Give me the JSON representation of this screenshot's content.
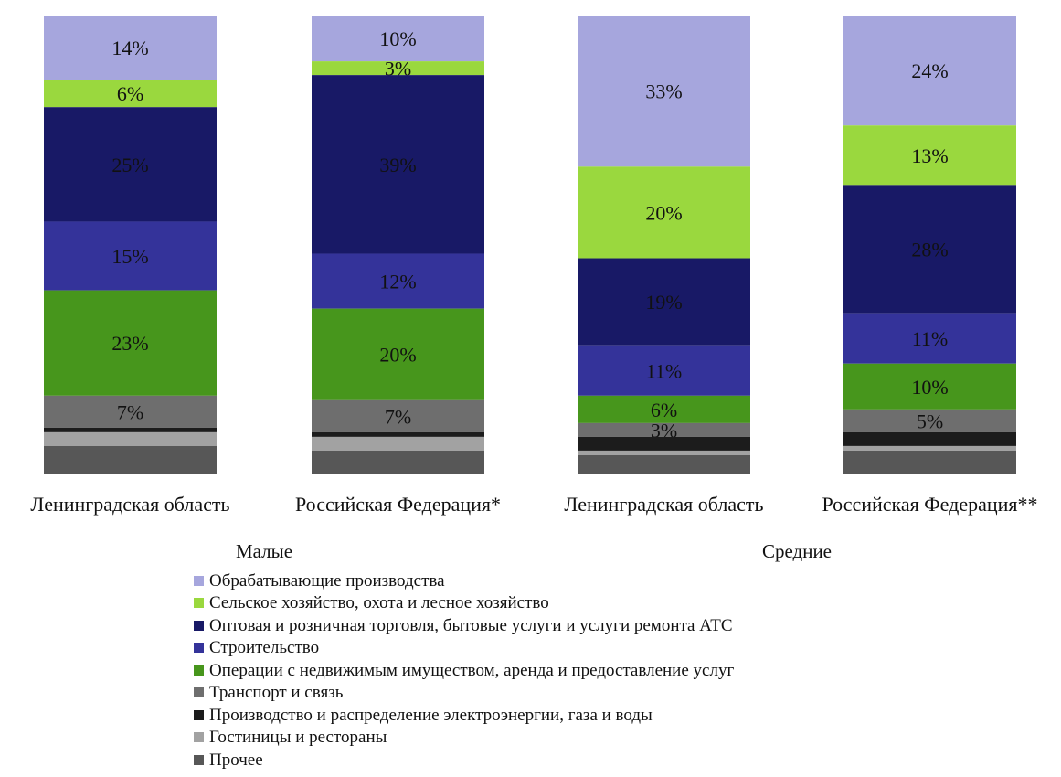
{
  "chart_data": {
    "type": "bar",
    "stacked": true,
    "percent_scale": true,
    "categories": [
      "Ленинградская область",
      "Российская Федерация*",
      "Ленинградская область",
      "Российская Федерация**"
    ],
    "groups": [
      {
        "label": "Малые",
        "categories": [
          0,
          1
        ]
      },
      {
        "label": "Средние",
        "categories": [
          2,
          3
        ]
      }
    ],
    "series": [
      {
        "name": "Обрабатывающие производства",
        "color": "#a6a6dd",
        "values": [
          14,
          10,
          33,
          24
        ],
        "labels": [
          "14%",
          "10%",
          "33%",
          "24%"
        ]
      },
      {
        "name": "Сельское хозяйство, охота и лесное хозяйство",
        "color": "#9ad83e",
        "values": [
          6,
          3,
          20,
          13
        ],
        "labels": [
          "6%",
          "3%",
          "20%",
          "13%"
        ]
      },
      {
        "name": "Оптовая и розничная торговля, бытовые услуги и услуги ремонта АТС",
        "color": "#181966",
        "values": [
          25,
          39,
          19,
          28
        ],
        "labels": [
          "25%",
          "39%",
          "19%",
          "28%"
        ]
      },
      {
        "name": "Строительство",
        "color": "#34339a",
        "values": [
          15,
          12,
          11,
          11
        ],
        "labels": [
          "15%",
          "12%",
          "11%",
          "11%"
        ]
      },
      {
        "name": "Операции с недвижимым имуществом, аренда и предоставление услуг",
        "color": "#47961c",
        "values": [
          23,
          20,
          6,
          10
        ],
        "labels": [
          "23%",
          "20%",
          "6%",
          "10%"
        ]
      },
      {
        "name": "Транспорт и связь",
        "color": "#6e6e6e",
        "values": [
          7,
          7,
          3,
          5
        ],
        "labels": [
          "7%",
          "7%",
          "3%",
          "5%"
        ]
      },
      {
        "name": "Производство и распределение электроэнергии, газа и воды",
        "color": "#1c1c1c",
        "values": [
          1,
          1,
          3,
          3
        ],
        "labels": [
          "",
          "",
          "",
          ""
        ]
      },
      {
        "name": "Гостиницы и рестораны",
        "color": "#a2a2a2",
        "values": [
          3,
          3,
          1,
          1
        ],
        "labels": [
          "",
          "",
          "",
          ""
        ]
      },
      {
        "name": "Прочее",
        "color": "#575757",
        "values": [
          6,
          5,
          4,
          5
        ],
        "labels": [
          "",
          "",
          "",
          ""
        ]
      }
    ],
    "ylim": [
      0,
      100
    ],
    "legend_position": "bottom"
  }
}
